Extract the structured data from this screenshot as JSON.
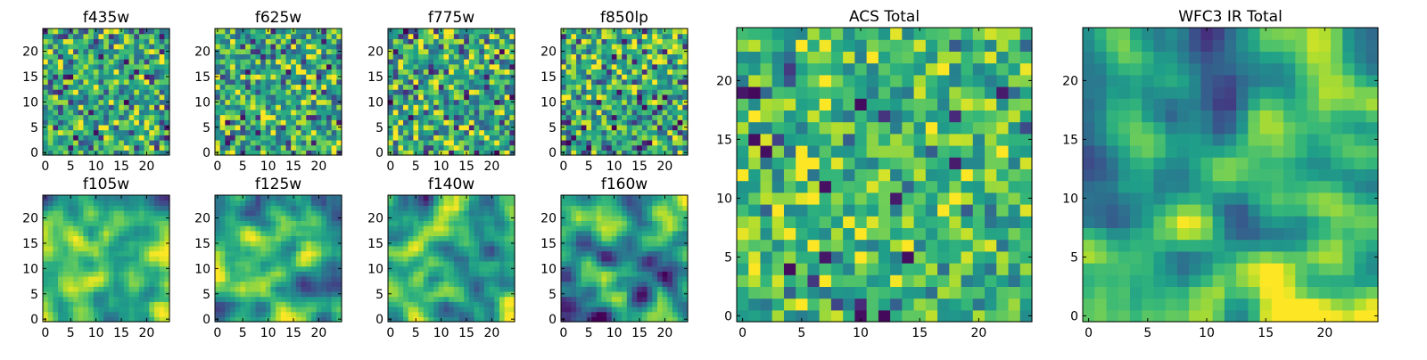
{
  "chart_data": [
    {
      "type": "heatmap",
      "title": "f435w",
      "xlim": [
        0,
        25
      ],
      "ylim": [
        0,
        25
      ],
      "xticks": [
        0,
        5,
        10,
        15,
        20
      ],
      "yticks": [
        0,
        5,
        10,
        15,
        20
      ],
      "colormap": "viridis",
      "texture": "uncorrelated pixel noise",
      "mean_level": 0.62,
      "contrast": 0.3
    },
    {
      "type": "heatmap",
      "title": "f625w",
      "xlim": [
        0,
        25
      ],
      "ylim": [
        0,
        25
      ],
      "xticks": [
        0,
        5,
        10,
        15,
        20
      ],
      "yticks": [
        0,
        5,
        10,
        15,
        20
      ],
      "colormap": "viridis",
      "texture": "uncorrelated pixel noise",
      "mean_level": 0.62,
      "contrast": 0.3
    },
    {
      "type": "heatmap",
      "title": "f775w",
      "xlim": [
        0,
        25
      ],
      "ylim": [
        0,
        25
      ],
      "xticks": [
        0,
        5,
        10,
        15,
        20
      ],
      "yticks": [
        0,
        5,
        10,
        15,
        20
      ],
      "colormap": "viridis",
      "texture": "uncorrelated pixel noise",
      "mean_level": 0.62,
      "contrast": 0.32
    },
    {
      "type": "heatmap",
      "title": "f850lp",
      "xlim": [
        0,
        25
      ],
      "ylim": [
        0,
        25
      ],
      "xticks": [
        0,
        5,
        10,
        15,
        20
      ],
      "yticks": [
        0,
        5,
        10,
        15,
        20
      ],
      "colormap": "viridis",
      "texture": "uncorrelated pixel noise",
      "mean_level": 0.62,
      "contrast": 0.32
    },
    {
      "type": "heatmap",
      "title": "f105w",
      "xlim": [
        0,
        25
      ],
      "ylim": [
        0,
        25
      ],
      "xticks": [
        0,
        5,
        10,
        15,
        20
      ],
      "yticks": [
        0,
        5,
        10,
        15,
        20
      ],
      "colormap": "viridis",
      "texture": "smooth correlated noise",
      "mean_level": 0.64,
      "contrast": 0.26
    },
    {
      "type": "heatmap",
      "title": "f125w",
      "xlim": [
        0,
        25
      ],
      "ylim": [
        0,
        25
      ],
      "xticks": [
        0,
        5,
        10,
        15,
        20
      ],
      "yticks": [
        0,
        5,
        10,
        15,
        20
      ],
      "colormap": "viridis",
      "texture": "smooth correlated noise",
      "mean_level": 0.6,
      "contrast": 0.3
    },
    {
      "type": "heatmap",
      "title": "f140w",
      "xlim": [
        0,
        25
      ],
      "ylim": [
        0,
        25
      ],
      "xticks": [
        0,
        5,
        10,
        15,
        20
      ],
      "yticks": [
        0,
        5,
        10,
        15,
        20
      ],
      "colormap": "viridis",
      "texture": "smooth correlated noise",
      "mean_level": 0.58,
      "contrast": 0.32
    },
    {
      "type": "heatmap",
      "title": "f160w",
      "xlim": [
        0,
        25
      ],
      "ylim": [
        0,
        25
      ],
      "xticks": [
        0,
        5,
        10,
        15,
        20
      ],
      "yticks": [
        0,
        5,
        10,
        15,
        20
      ],
      "colormap": "viridis",
      "texture": "smooth correlated noise",
      "mean_level": 0.5,
      "contrast": 0.36
    },
    {
      "type": "heatmap",
      "title": "ACS Total",
      "xlim": [
        0,
        25
      ],
      "ylim": [
        0,
        25
      ],
      "xticks": [
        0,
        5,
        10,
        15,
        20
      ],
      "yticks": [
        0,
        5,
        10,
        15,
        20
      ],
      "colormap": "viridis",
      "texture": "pixel noise",
      "mean_level": 0.68,
      "contrast": 0.24
    },
    {
      "type": "heatmap",
      "title": "WFC3 IR Total",
      "xlim": [
        0,
        25
      ],
      "ylim": [
        0,
        25
      ],
      "xticks": [
        0,
        5,
        10,
        15,
        20
      ],
      "yticks": [
        0,
        5,
        10,
        15,
        20
      ],
      "colormap": "viridis",
      "texture": "smooth gradient, dark top-left to bright bottom-right",
      "mean_level": 0.58,
      "contrast": 0.3
    }
  ]
}
